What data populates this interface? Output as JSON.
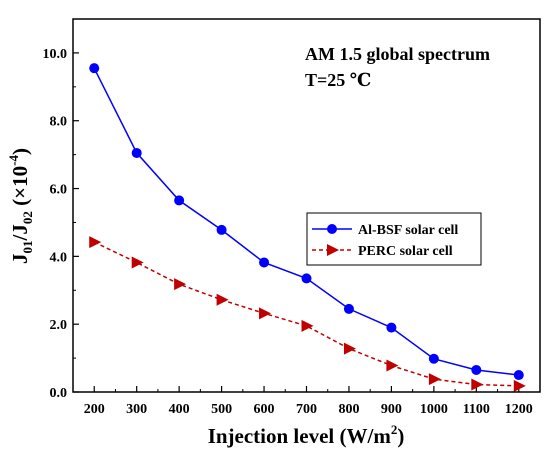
{
  "chart_data": {
    "type": "line",
    "title": "",
    "annotation": {
      "line1": "AM 1.5 global spectrum",
      "line2": "T=25 ℃"
    },
    "xlabel": {
      "text": "Injection level (W/m",
      "sup": "2",
      "tail": ")"
    },
    "ylabel": {
      "a": "J",
      "a_sub": "01",
      "slash": "/J",
      "b_sub": "02",
      "paren": " (×10",
      "exp": "-4",
      "close": ")"
    },
    "x": [
      200,
      300,
      400,
      500,
      600,
      700,
      800,
      900,
      1000,
      1100,
      1200
    ],
    "x_ticks": [
      "200",
      "300",
      "400",
      "500",
      "600",
      "700",
      "800",
      "900",
      "1000",
      "1100",
      "1200"
    ],
    "xlim": [
      150,
      1250
    ],
    "ylim": [
      0,
      11
    ],
    "y_ticks": [
      "0.0",
      "2.0",
      "4.0",
      "6.0",
      "8.0",
      "10.0"
    ],
    "y_tick_values": [
      0,
      2,
      4,
      6,
      8,
      10
    ],
    "legend_position": "center-right",
    "series": [
      {
        "name": "Al-BSF solar cell",
        "color": "#0000ff",
        "marker": "circle",
        "line_style": "solid",
        "values": [
          9.55,
          7.05,
          5.65,
          4.78,
          3.82,
          3.35,
          2.45,
          1.9,
          0.98,
          0.65,
          0.5
        ]
      },
      {
        "name": "PERC solar cell",
        "color": "#c00000",
        "marker": "triangle-right",
        "line_style": "dashed",
        "values": [
          4.42,
          3.82,
          3.18,
          2.72,
          2.32,
          1.95,
          1.28,
          0.78,
          0.38,
          0.22,
          0.18
        ]
      }
    ]
  }
}
